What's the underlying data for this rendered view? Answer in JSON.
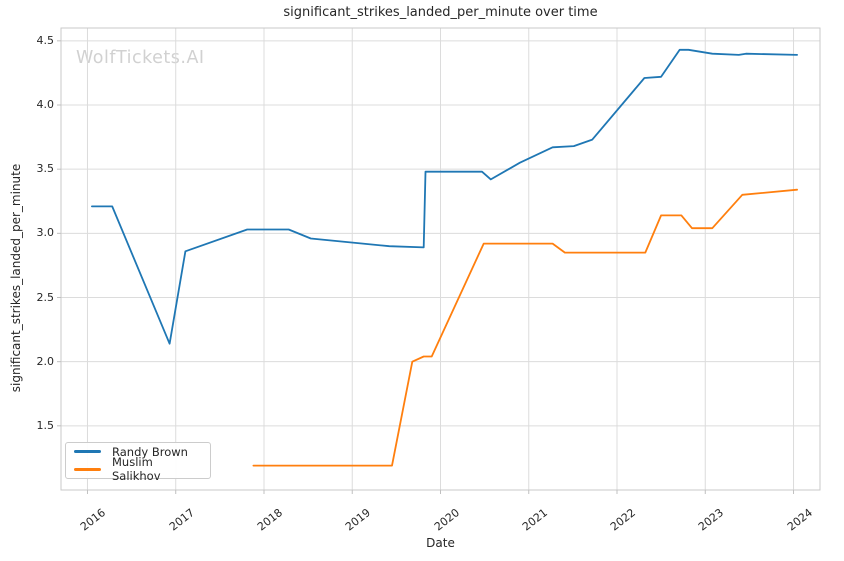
{
  "chart_data": {
    "type": "line",
    "title": "significant_strikes_landed_per_minute over time",
    "xlabel": "Date",
    "ylabel": "significant_strikes_landed_per_minute",
    "watermark": "WolfTickets.AI",
    "xlim": [
      2015.7,
      2024.3
    ],
    "ylim": [
      1.0,
      4.6
    ],
    "xticks": [
      2016,
      2017,
      2018,
      2019,
      2020,
      2021,
      2022,
      2023,
      2024
    ],
    "xticklabels": [
      "2016",
      "2017",
      "2018",
      "2019",
      "2020",
      "2021",
      "2022",
      "2023",
      "2024"
    ],
    "yticks": [
      1.5,
      2.0,
      2.5,
      3.0,
      3.5,
      4.0,
      4.5
    ],
    "yticklabels": [
      "1.5",
      "2.0",
      "2.5",
      "3.0",
      "3.5",
      "4.0",
      "4.5"
    ],
    "grid": true,
    "legend_position": "lower left",
    "series": [
      {
        "name": "Randy Brown",
        "color": "#1f77b4",
        "points": [
          [
            2016.05,
            3.21
          ],
          [
            2016.28,
            3.21
          ],
          [
            2016.93,
            2.14
          ],
          [
            2017.11,
            2.86
          ],
          [
            2017.81,
            3.03
          ],
          [
            2018.28,
            3.03
          ],
          [
            2018.53,
            2.96
          ],
          [
            2019.42,
            2.9
          ],
          [
            2019.81,
            2.89
          ],
          [
            2019.83,
            3.48
          ],
          [
            2020.47,
            3.48
          ],
          [
            2020.57,
            3.42
          ],
          [
            2020.9,
            3.55
          ],
          [
            2021.27,
            3.67
          ],
          [
            2021.51,
            3.68
          ],
          [
            2021.72,
            3.73
          ],
          [
            2022.31,
            4.21
          ],
          [
            2022.5,
            4.22
          ],
          [
            2022.71,
            4.43
          ],
          [
            2022.81,
            4.43
          ],
          [
            2023.08,
            4.4
          ],
          [
            2023.38,
            4.39
          ],
          [
            2023.46,
            4.4
          ],
          [
            2024.04,
            4.39
          ]
        ]
      },
      {
        "name": "Muslim Salikhov",
        "color": "#ff7f0e",
        "points": [
          [
            2017.88,
            1.19
          ],
          [
            2019.45,
            1.19
          ],
          [
            2019.68,
            2.0
          ],
          [
            2019.81,
            2.04
          ],
          [
            2019.9,
            2.04
          ],
          [
            2020.49,
            2.92
          ],
          [
            2021.27,
            2.92
          ],
          [
            2021.41,
            2.85
          ],
          [
            2022.32,
            2.85
          ],
          [
            2022.5,
            3.14
          ],
          [
            2022.73,
            3.14
          ],
          [
            2022.85,
            3.04
          ],
          [
            2023.08,
            3.04
          ],
          [
            2023.42,
            3.3
          ],
          [
            2024.04,
            3.34
          ]
        ]
      }
    ]
  },
  "colors": {
    "grid": "#dcdcdc",
    "spine": "#c9c9c9",
    "tick": "#c0c0c0",
    "text": "#262626",
    "watermark": "#d1d1d1",
    "legend_border": "#cccccc"
  }
}
